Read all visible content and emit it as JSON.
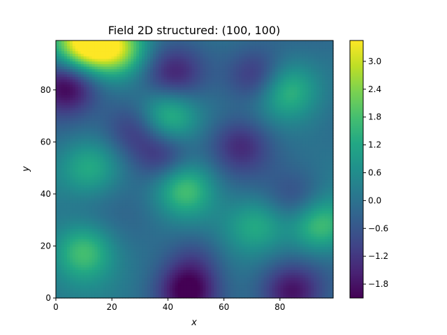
{
  "chart_data": {
    "type": "heatmap",
    "title": "Field 2D structured: (100, 100)",
    "xlabel": "x",
    "ylabel": "y",
    "xlim": [
      0,
      99
    ],
    "ylim": [
      0,
      99
    ],
    "xticks": [
      0,
      20,
      40,
      60,
      80
    ],
    "yticks": [
      0,
      20,
      40,
      60,
      80
    ],
    "colormap": "viridis",
    "color_range": [
      -2.1,
      3.45
    ],
    "colorbar_ticks": [
      "3.0",
      "2.4",
      "1.8",
      "1.2",
      "0.6",
      "0.0",
      "−0.6",
      "−1.2",
      "−1.8"
    ],
    "colorbar_tick_values": [
      3.0,
      2.4,
      1.8,
      1.2,
      0.6,
      0.0,
      -0.6,
      -1.2,
      -1.8
    ],
    "grid_shape": [
      100,
      100
    ],
    "features": [
      {
        "x": 10,
        "y": 98,
        "value": 3.4
      },
      {
        "x": 22,
        "y": 96,
        "value": 2.6
      },
      {
        "x": 4,
        "y": 82,
        "value": -2.0
      },
      {
        "x": 42,
        "y": 86,
        "value": -1.3
      },
      {
        "x": 72,
        "y": 85,
        "value": -1.5
      },
      {
        "x": 28,
        "y": 65,
        "value": -1.3
      },
      {
        "x": 38,
        "y": 55,
        "value": -1.4
      },
      {
        "x": 66,
        "y": 59,
        "value": -1.2
      },
      {
        "x": 40,
        "y": 70,
        "value": 1.7
      },
      {
        "x": 12,
        "y": 50,
        "value": 1.3
      },
      {
        "x": 46,
        "y": 42,
        "value": 1.9
      },
      {
        "x": 94,
        "y": 28,
        "value": 1.8
      },
      {
        "x": 10,
        "y": 18,
        "value": 1.7
      },
      {
        "x": 82,
        "y": 80,
        "value": 1.5
      },
      {
        "x": 72,
        "y": 28,
        "value": 1.2
      },
      {
        "x": 47,
        "y": 3,
        "value": -2.0
      },
      {
        "x": 84,
        "y": 2,
        "value": -1.7
      },
      {
        "x": 86,
        "y": 38,
        "value": -0.9
      },
      {
        "x": 50,
        "y": 16,
        "value": -0.8
      }
    ]
  }
}
